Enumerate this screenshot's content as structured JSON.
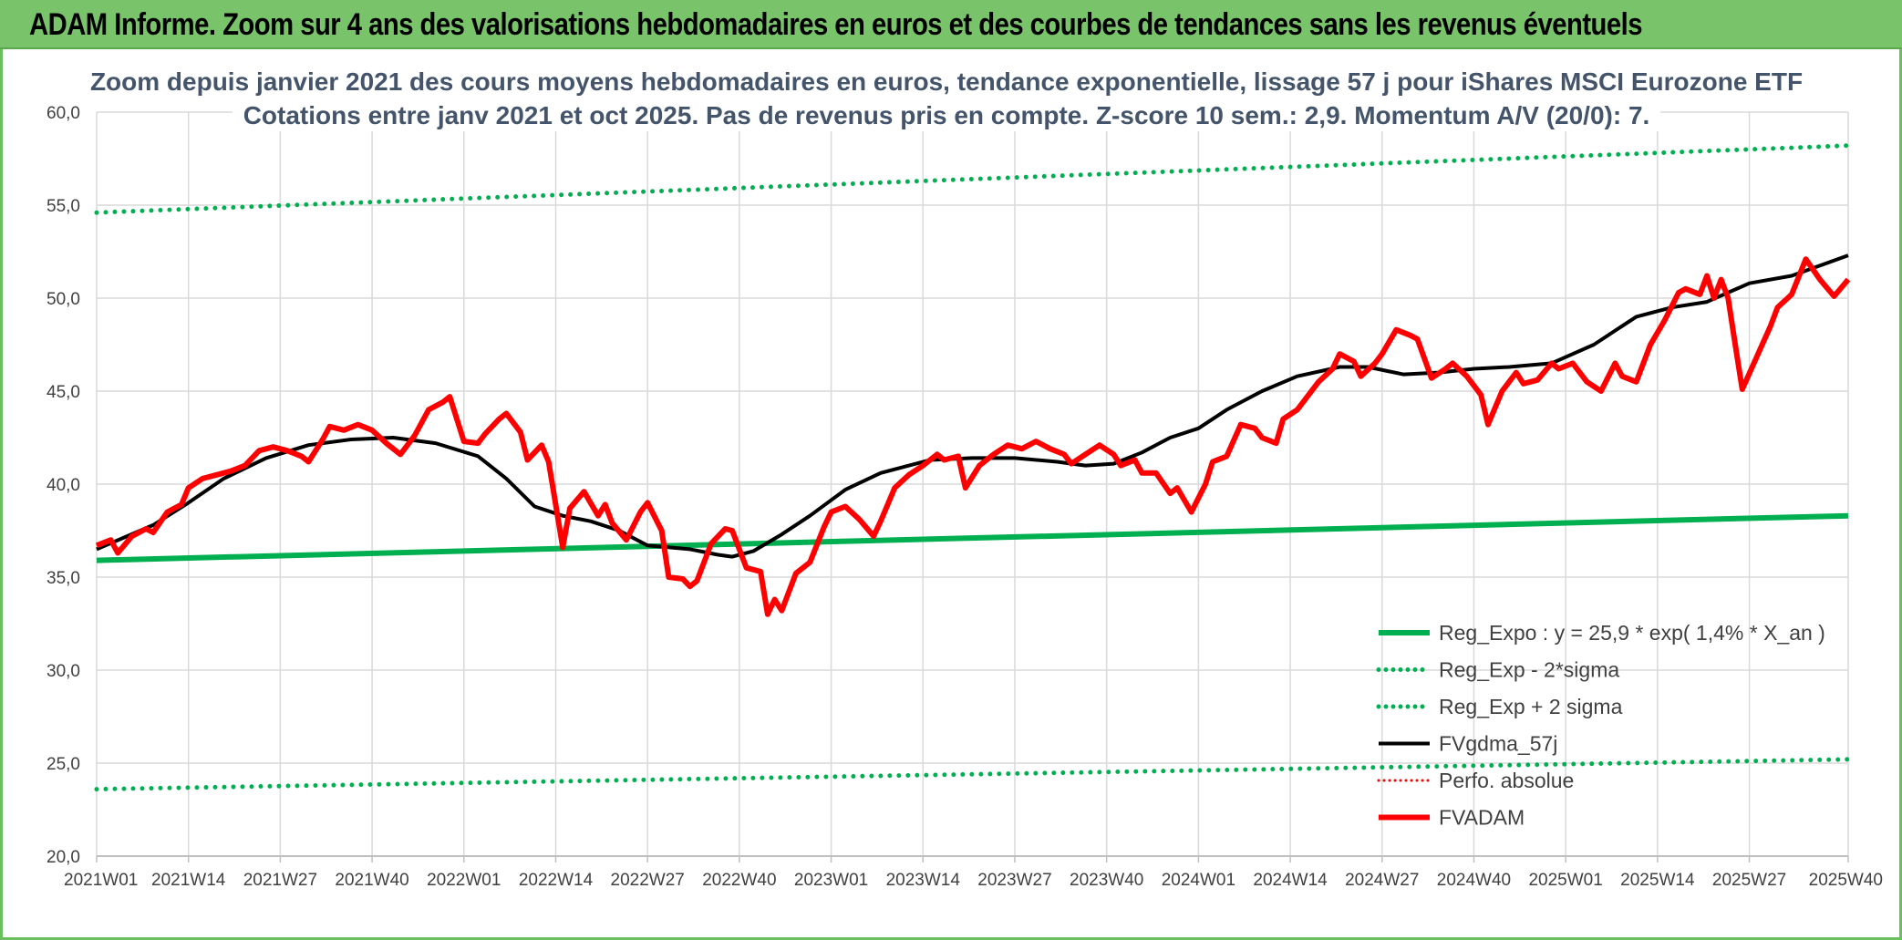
{
  "banner": {
    "title": "ADAM Informe. Zoom sur 4 ans des valorisations hebdomadaires en euros et des courbes de tendances sans les revenus éventuels"
  },
  "colors": {
    "banner": "#79c46a",
    "green": "#00b050",
    "red": "#ff0000",
    "black": "#000000",
    "grid": "#d9d9d9",
    "title": "#44546a"
  },
  "chart_data": {
    "type": "line",
    "title": "Zoom depuis janvier 2021 des cours moyens hebdomadaires en euros, tendance exponentielle, lissage 57 j pour iShares MSCI Eurozone ETF",
    "subtitle": "Cotations entre janv 2021 et oct 2025. Pas de revenus pris en compte. Z-score 10 sem.: 2,9. Momentum A/V (20/0): 7.",
    "ylim": [
      20,
      60
    ],
    "yticks": [
      "20,0",
      "25,0",
      "30,0",
      "35,0",
      "40,0",
      "45,0",
      "50,0",
      "55,0",
      "60,0"
    ],
    "yvalues": [
      20,
      25,
      30,
      35,
      40,
      45,
      50,
      55,
      60
    ],
    "n_weeks": 249,
    "xticks": [
      {
        "label": "2021W01",
        "index": 0
      },
      {
        "label": "2021W14",
        "index": 13
      },
      {
        "label": "2021W27",
        "index": 26
      },
      {
        "label": "2021W40",
        "index": 39
      },
      {
        "label": "2022W01",
        "index": 52
      },
      {
        "label": "2022W14",
        "index": 65
      },
      {
        "label": "2022W27",
        "index": 78
      },
      {
        "label": "2022W40",
        "index": 91
      },
      {
        "label": "2023W01",
        "index": 104
      },
      {
        "label": "2023W14",
        "index": 117
      },
      {
        "label": "2023W27",
        "index": 130
      },
      {
        "label": "2023W40",
        "index": 143
      },
      {
        "label": "2024W01",
        "index": 156
      },
      {
        "label": "2024W14",
        "index": 169
      },
      {
        "label": "2024W27",
        "index": 182
      },
      {
        "label": "2024W40",
        "index": 195
      },
      {
        "label": "2025W01",
        "index": 208
      },
      {
        "label": "2025W14",
        "index": 221
      },
      {
        "label": "2025W27",
        "index": 234
      },
      {
        "label": "2025W40",
        "index": 248
      }
    ],
    "grid": true,
    "legend_position": "right",
    "series": [
      {
        "name": "Reg_Expo : y = 25,9 * exp( 1,4% *  X_an )",
        "style": "solid",
        "color": "#00b050",
        "points": [
          [
            0,
            35.9
          ],
          [
            248,
            38.3
          ]
        ]
      },
      {
        "name": "Reg_Exp - 2*sigma",
        "style": "dotted",
        "color": "#00b050",
        "points": [
          [
            0,
            23.6
          ],
          [
            248,
            25.2
          ]
        ]
      },
      {
        "name": "Reg_Exp + 2 sigma",
        "style": "dotted",
        "color": "#00b050",
        "points": [
          [
            0,
            54.6
          ],
          [
            248,
            58.2
          ]
        ]
      },
      {
        "name": "FVgdma_57j",
        "style": "solid",
        "color": "#000000",
        "points": [
          [
            0,
            36.5
          ],
          [
            8,
            37.8
          ],
          [
            13,
            39.0
          ],
          [
            18,
            40.3
          ],
          [
            24,
            41.4
          ],
          [
            30,
            42.1
          ],
          [
            36,
            42.4
          ],
          [
            42,
            42.5
          ],
          [
            48,
            42.2
          ],
          [
            54,
            41.5
          ],
          [
            58,
            40.3
          ],
          [
            62,
            38.8
          ],
          [
            66,
            38.3
          ],
          [
            70,
            38.0
          ],
          [
            74,
            37.5
          ],
          [
            78,
            36.7
          ],
          [
            84,
            36.5
          ],
          [
            88,
            36.2
          ],
          [
            90,
            36.1
          ],
          [
            93,
            36.4
          ],
          [
            97,
            37.3
          ],
          [
            101,
            38.3
          ],
          [
            106,
            39.7
          ],
          [
            111,
            40.6
          ],
          [
            118,
            41.3
          ],
          [
            124,
            41.4
          ],
          [
            130,
            41.4
          ],
          [
            136,
            41.2
          ],
          [
            140,
            41.0
          ],
          [
            144,
            41.1
          ],
          [
            148,
            41.7
          ],
          [
            152,
            42.5
          ],
          [
            156,
            43.0
          ],
          [
            160,
            44.0
          ],
          [
            165,
            45.0
          ],
          [
            170,
            45.8
          ],
          [
            176,
            46.3
          ],
          [
            180,
            46.3
          ],
          [
            185,
            45.9
          ],
          [
            190,
            46.0
          ],
          [
            195,
            46.2
          ],
          [
            200,
            46.3
          ],
          [
            206,
            46.5
          ],
          [
            212,
            47.5
          ],
          [
            218,
            49.0
          ],
          [
            223,
            49.5
          ],
          [
            228,
            49.8
          ],
          [
            234,
            50.8
          ],
          [
            240,
            51.2
          ],
          [
            248,
            52.3
          ]
        ]
      },
      {
        "name": "Perfo. absolue",
        "style": "dotted",
        "color": "#ff0000",
        "points": []
      },
      {
        "name": "FVADAM",
        "style": "solid",
        "color": "#ff0000",
        "points": [
          [
            0,
            36.7
          ],
          [
            2,
            37.0
          ],
          [
            3,
            36.3
          ],
          [
            5,
            37.2
          ],
          [
            7,
            37.6
          ],
          [
            8,
            37.4
          ],
          [
            10,
            38.5
          ],
          [
            12,
            38.9
          ],
          [
            13,
            39.8
          ],
          [
            15,
            40.3
          ],
          [
            17,
            40.5
          ],
          [
            19,
            40.7
          ],
          [
            21,
            41.0
          ],
          [
            23,
            41.8
          ],
          [
            25,
            42.0
          ],
          [
            27,
            41.8
          ],
          [
            29,
            41.5
          ],
          [
            30,
            41.2
          ],
          [
            32,
            42.4
          ],
          [
            33,
            43.1
          ],
          [
            35,
            42.9
          ],
          [
            37,
            43.2
          ],
          [
            39,
            42.9
          ],
          [
            41,
            42.2
          ],
          [
            43,
            41.6
          ],
          [
            45,
            42.6
          ],
          [
            47,
            44.0
          ],
          [
            49,
            44.4
          ],
          [
            50,
            44.7
          ],
          [
            52,
            42.3
          ],
          [
            54,
            42.2
          ],
          [
            55,
            42.7
          ],
          [
            57,
            43.5
          ],
          [
            58,
            43.8
          ],
          [
            60,
            42.8
          ],
          [
            61,
            41.3
          ],
          [
            63,
            42.1
          ],
          [
            64,
            41.2
          ],
          [
            66,
            36.6
          ],
          [
            67,
            38.7
          ],
          [
            69,
            39.6
          ],
          [
            71,
            38.3
          ],
          [
            72,
            38.9
          ],
          [
            73,
            37.9
          ],
          [
            75,
            37.0
          ],
          [
            77,
            38.5
          ],
          [
            78,
            39.0
          ],
          [
            80,
            37.5
          ],
          [
            81,
            35.0
          ],
          [
            83,
            34.9
          ],
          [
            84,
            34.5
          ],
          [
            85,
            34.8
          ],
          [
            87,
            36.8
          ],
          [
            89,
            37.6
          ],
          [
            90,
            37.5
          ],
          [
            92,
            35.5
          ],
          [
            94,
            35.3
          ],
          [
            95,
            33.0
          ],
          [
            96,
            33.8
          ],
          [
            97,
            33.2
          ],
          [
            99,
            35.2
          ],
          [
            101,
            35.8
          ],
          [
            103,
            37.7
          ],
          [
            104,
            38.5
          ],
          [
            106,
            38.8
          ],
          [
            108,
            38.1
          ],
          [
            110,
            37.2
          ],
          [
            111,
            38.0
          ],
          [
            113,
            39.8
          ],
          [
            115,
            40.5
          ],
          [
            117,
            41.0
          ],
          [
            119,
            41.6
          ],
          [
            120,
            41.3
          ],
          [
            122,
            41.5
          ],
          [
            123,
            39.8
          ],
          [
            125,
            41.0
          ],
          [
            127,
            41.6
          ],
          [
            129,
            42.1
          ],
          [
            131,
            41.9
          ],
          [
            133,
            42.3
          ],
          [
            135,
            41.9
          ],
          [
            137,
            41.6
          ],
          [
            138,
            41.1
          ],
          [
            140,
            41.6
          ],
          [
            142,
            42.1
          ],
          [
            144,
            41.6
          ],
          [
            145,
            41.0
          ],
          [
            147,
            41.3
          ],
          [
            148,
            40.6
          ],
          [
            150,
            40.6
          ],
          [
            152,
            39.5
          ],
          [
            153,
            39.8
          ],
          [
            155,
            38.5
          ],
          [
            157,
            40.0
          ],
          [
            158,
            41.2
          ],
          [
            160,
            41.5
          ],
          [
            162,
            43.2
          ],
          [
            164,
            43.0
          ],
          [
            165,
            42.5
          ],
          [
            167,
            42.2
          ],
          [
            168,
            43.5
          ],
          [
            170,
            44.0
          ],
          [
            171,
            44.5
          ],
          [
            173,
            45.5
          ],
          [
            175,
            46.2
          ],
          [
            176,
            47.0
          ],
          [
            178,
            46.6
          ],
          [
            179,
            45.8
          ],
          [
            181,
            46.5
          ],
          [
            182,
            47.0
          ],
          [
            184,
            48.3
          ],
          [
            186,
            48.0
          ],
          [
            187,
            47.8
          ],
          [
            189,
            45.7
          ],
          [
            191,
            46.2
          ],
          [
            192,
            46.5
          ],
          [
            194,
            45.8
          ],
          [
            196,
            44.8
          ],
          [
            197,
            43.2
          ],
          [
            199,
            45.0
          ],
          [
            201,
            46.0
          ],
          [
            202,
            45.4
          ],
          [
            204,
            45.6
          ],
          [
            206,
            46.5
          ],
          [
            207,
            46.2
          ],
          [
            209,
            46.5
          ],
          [
            211,
            45.5
          ],
          [
            213,
            45.0
          ],
          [
            215,
            46.5
          ],
          [
            216,
            45.8
          ],
          [
            218,
            45.5
          ],
          [
            220,
            47.5
          ],
          [
            222,
            48.8
          ],
          [
            224,
            50.3
          ],
          [
            225,
            50.5
          ],
          [
            227,
            50.2
          ],
          [
            228,
            51.2
          ],
          [
            229,
            50.0
          ],
          [
            230,
            51.0
          ],
          [
            231,
            50.0
          ],
          [
            232,
            47.5
          ],
          [
            233,
            45.1
          ],
          [
            235,
            46.8
          ],
          [
            237,
            48.5
          ],
          [
            238,
            49.5
          ],
          [
            240,
            50.2
          ],
          [
            242,
            52.1
          ],
          [
            244,
            51.0
          ],
          [
            246,
            50.1
          ],
          [
            248,
            51.0
          ]
        ]
      }
    ]
  }
}
